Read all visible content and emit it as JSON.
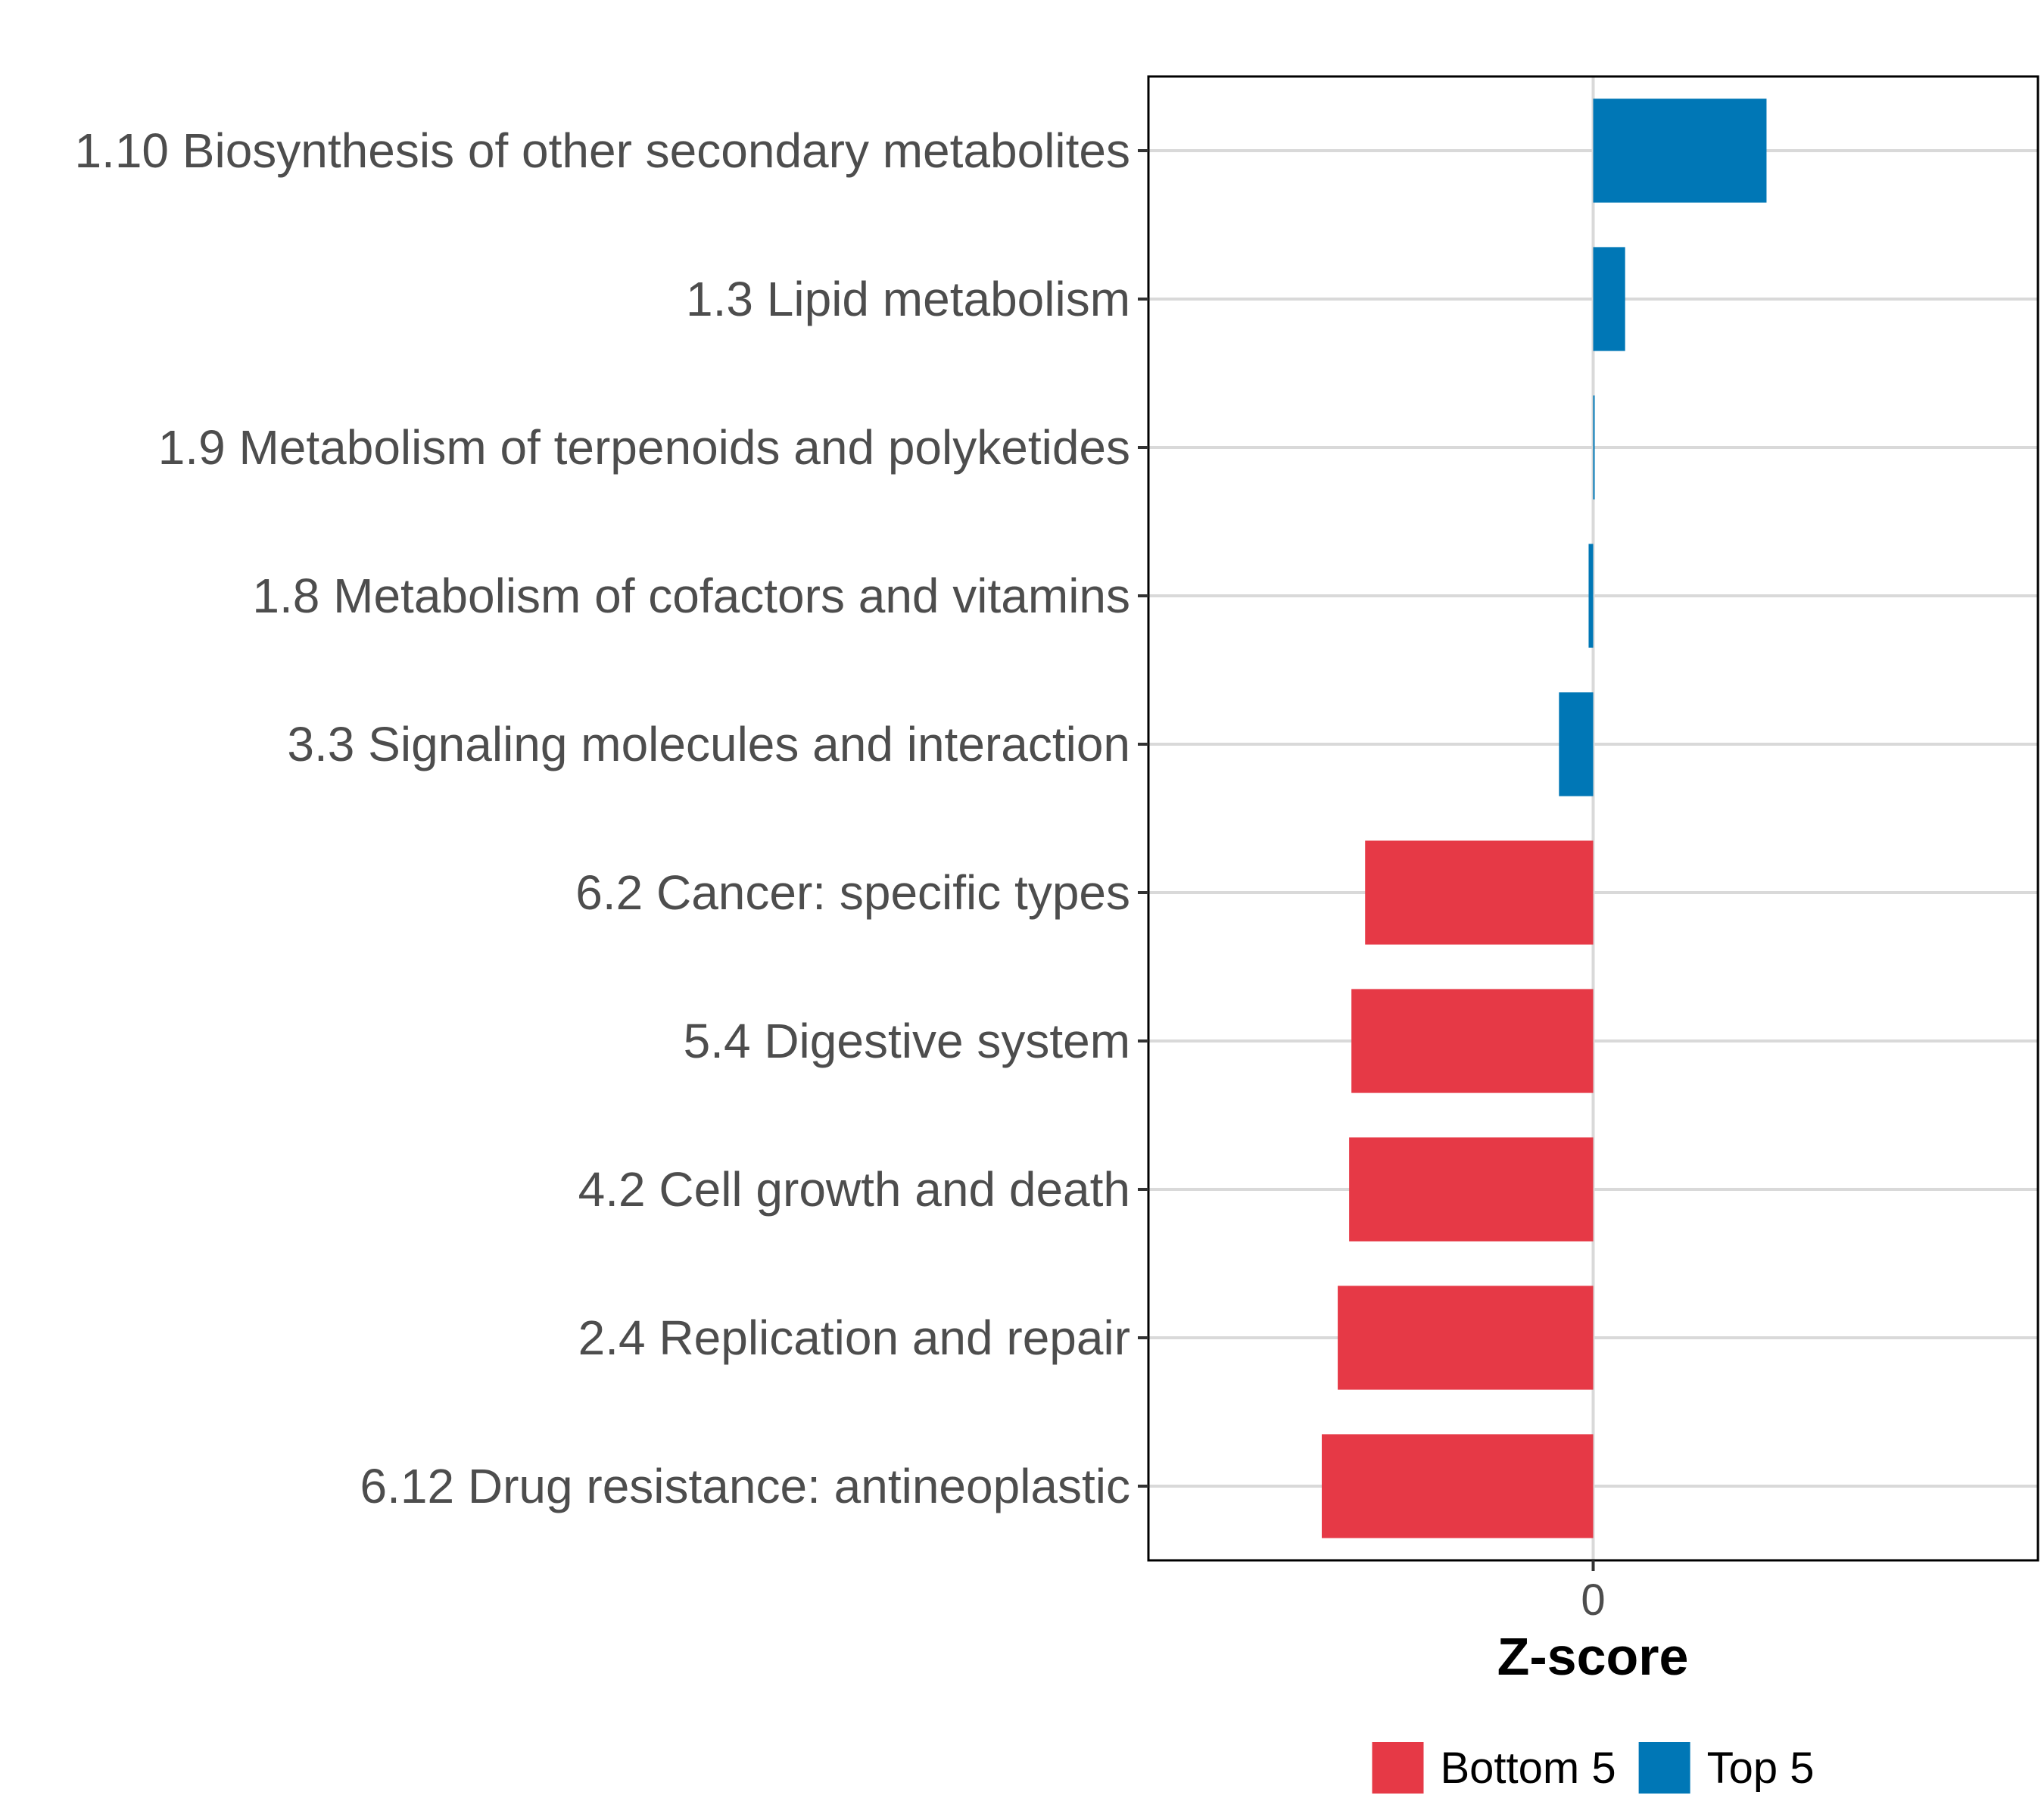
{
  "chart_data": {
    "type": "bar",
    "orientation": "horizontal",
    "title": "",
    "xlabel": "Z-score",
    "ylabel": "",
    "xlim": [
      -1.95,
      1.95
    ],
    "x_ticks": [
      0
    ],
    "x_tick_labels": [
      "0"
    ],
    "grid": true,
    "categories": [
      "1.10 Biosynthesis of other secondary metabolites",
      "1.3 Lipid metabolism",
      "1.9 Metabolism of terpenoids and polyketides",
      "1.8 Metabolism of cofactors and vitamins",
      "3.3 Signaling molecules and interaction",
      "6.2 Cancer: specific types",
      "5.4 Digestive system",
      "4.2 Cell growth and death",
      "2.4 Replication and repair",
      "6.12 Drug resistance: antineoplastic"
    ],
    "values": [
      0.76,
      0.14,
      0.005,
      -0.02,
      -0.15,
      -1.0,
      -1.06,
      -1.07,
      -1.12,
      -1.19
    ],
    "groups": [
      "Top 5",
      "Top 5",
      "Top 5",
      "Top 5",
      "Top 5",
      "Bottom 5",
      "Bottom 5",
      "Bottom 5",
      "Bottom 5",
      "Bottom 5"
    ],
    "legend": {
      "position": "bottom",
      "entries": [
        {
          "name": "Bottom 5",
          "color": "#E63946"
        },
        {
          "name": "Top 5",
          "color": "#0077B6"
        }
      ]
    }
  }
}
